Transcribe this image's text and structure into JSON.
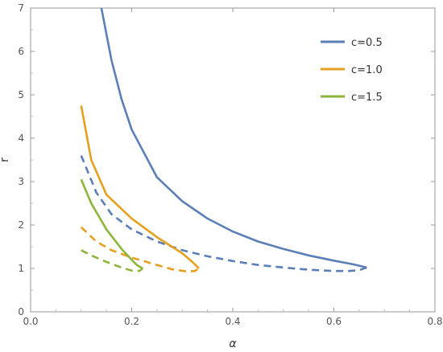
{
  "chart_data": {
    "type": "line",
    "xlabel": "α",
    "ylabel": "r",
    "xlim": [
      0.0,
      0.8
    ],
    "ylim": [
      0,
      7
    ],
    "xticks": [
      "0.0",
      "0.2",
      "0.4",
      "0.6",
      "0.8"
    ],
    "yticks": [
      "0",
      "1",
      "2",
      "3",
      "4",
      "5",
      "6",
      "7"
    ],
    "legend_position": "top-right",
    "grid": false,
    "series": [
      {
        "name": "c=0.5",
        "color": "#5b7fb6",
        "solid": [
          [
            0.14,
            7.0
          ],
          [
            0.16,
            5.8
          ],
          [
            0.18,
            4.9
          ],
          [
            0.2,
            4.2
          ],
          [
            0.25,
            3.1
          ],
          [
            0.3,
            2.55
          ],
          [
            0.35,
            2.15
          ],
          [
            0.4,
            1.85
          ],
          [
            0.45,
            1.62
          ],
          [
            0.5,
            1.45
          ],
          [
            0.55,
            1.3
          ],
          [
            0.6,
            1.18
          ],
          [
            0.64,
            1.09
          ],
          [
            0.665,
            1.02
          ]
        ],
        "dashed": [
          [
            0.1,
            3.6
          ],
          [
            0.13,
            2.75
          ],
          [
            0.16,
            2.25
          ],
          [
            0.2,
            1.9
          ],
          [
            0.25,
            1.62
          ],
          [
            0.3,
            1.42
          ],
          [
            0.35,
            1.28
          ],
          [
            0.4,
            1.17
          ],
          [
            0.45,
            1.08
          ],
          [
            0.5,
            1.02
          ],
          [
            0.55,
            0.97
          ],
          [
            0.6,
            0.94
          ],
          [
            0.63,
            0.94
          ],
          [
            0.65,
            0.96
          ],
          [
            0.665,
            1.02
          ]
        ]
      },
      {
        "name": "c=1.0",
        "color": "#e6a020",
        "solid": [
          [
            0.1,
            4.75
          ],
          [
            0.12,
            3.5
          ],
          [
            0.15,
            2.7
          ],
          [
            0.2,
            2.15
          ],
          [
            0.25,
            1.72
          ],
          [
            0.3,
            1.35
          ],
          [
            0.32,
            1.15
          ],
          [
            0.333,
            1.0
          ]
        ],
        "dashed": [
          [
            0.1,
            1.95
          ],
          [
            0.13,
            1.62
          ],
          [
            0.16,
            1.42
          ],
          [
            0.2,
            1.25
          ],
          [
            0.25,
            1.08
          ],
          [
            0.28,
            0.98
          ],
          [
            0.31,
            0.93
          ],
          [
            0.325,
            0.94
          ],
          [
            0.333,
            1.0
          ]
        ]
      },
      {
        "name": "c=1.5",
        "color": "#8db53c",
        "solid": [
          [
            0.1,
            3.05
          ],
          [
            0.12,
            2.5
          ],
          [
            0.15,
            1.9
          ],
          [
            0.18,
            1.45
          ],
          [
            0.2,
            1.2
          ],
          [
            0.21,
            1.08
          ],
          [
            0.222,
            1.0
          ]
        ],
        "dashed": [
          [
            0.1,
            1.42
          ],
          [
            0.12,
            1.3
          ],
          [
            0.15,
            1.15
          ],
          [
            0.18,
            1.02
          ],
          [
            0.2,
            0.95
          ],
          [
            0.215,
            0.94
          ],
          [
            0.222,
            1.0
          ]
        ]
      }
    ]
  }
}
